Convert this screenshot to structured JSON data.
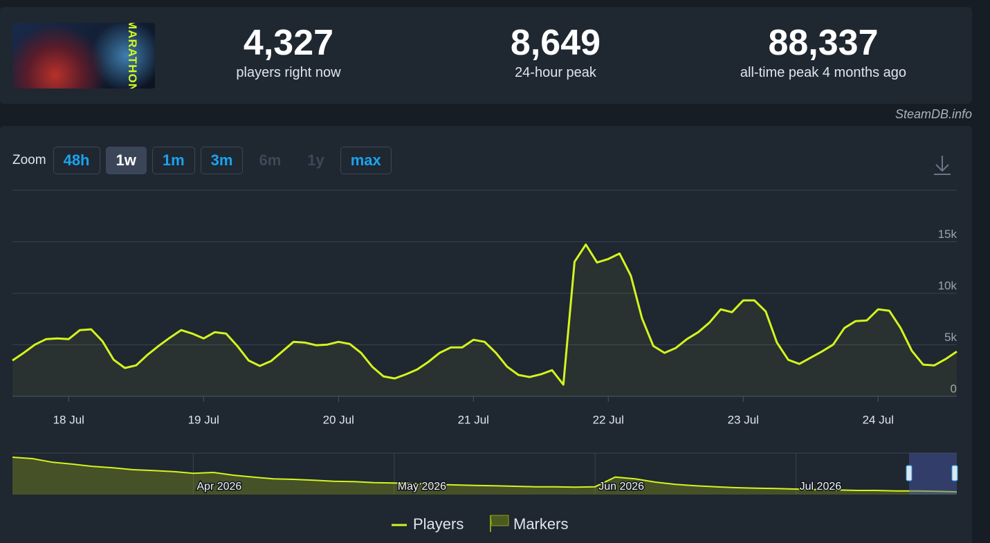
{
  "header": {
    "game_logo_text": "MARATHON",
    "stats": [
      {
        "value": "4,327",
        "label": "players right now"
      },
      {
        "value": "8,649",
        "label": "24-hour peak"
      },
      {
        "value": "88,337",
        "label": "all-time peak 4 months ago"
      }
    ]
  },
  "watermark": "SteamDB.info",
  "zoom": {
    "label": "Zoom",
    "options": [
      {
        "label": "48h",
        "state": "enabled"
      },
      {
        "label": "1w",
        "state": "active"
      },
      {
        "label": "1m",
        "state": "enabled"
      },
      {
        "label": "3m",
        "state": "enabled"
      },
      {
        "label": "6m",
        "state": "disabled"
      },
      {
        "label": "1y",
        "state": "disabled"
      },
      {
        "label": "max",
        "state": "enabled"
      }
    ]
  },
  "chart_data": {
    "type": "line",
    "categories": [
      null,
      null,
      null,
      null,
      null,
      "18 Jul",
      null,
      null,
      null,
      null,
      null,
      null,
      null,
      null,
      null,
      null,
      null,
      "19 Jul",
      null,
      null,
      null,
      null,
      null,
      null,
      null,
      null,
      null,
      null,
      null,
      "20 Jul",
      null,
      null,
      null,
      null,
      null,
      null,
      null,
      null,
      null,
      null,
      null,
      "21 Jul",
      null,
      null,
      null,
      null,
      null,
      null,
      null,
      null,
      null,
      null,
      null,
      "22 Jul",
      null,
      null,
      null,
      null,
      null,
      null,
      null,
      null,
      null,
      null,
      null,
      "23 Jul",
      null,
      null,
      null,
      null,
      null,
      null,
      null,
      null,
      null,
      null,
      null,
      "24 Jul",
      null,
      null,
      null,
      null,
      null,
      null,
      null
    ],
    "series": [
      {
        "name": "Players",
        "color": "#d4f51e",
        "values": [
          3480,
          4220,
          5020,
          5560,
          5620,
          5560,
          6430,
          6500,
          5360,
          3550,
          2750,
          3010,
          4020,
          4890,
          5690,
          6430,
          6090,
          5620,
          6230,
          6090,
          4890,
          3480,
          2950,
          3420,
          4350,
          5290,
          5220,
          4960,
          5020,
          5290,
          5090,
          4220,
          2880,
          1940,
          1740,
          2140,
          2610,
          3350,
          4220,
          4750,
          4750,
          5490,
          5290,
          4220,
          2880,
          2080,
          1870,
          2140,
          2540,
          1140,
          13060,
          14730,
          12990,
          13330,
          13860,
          11720,
          7570,
          4890,
          4220,
          4690,
          5560,
          6230,
          7160,
          8440,
          8170,
          9310,
          9310,
          8240,
          5220,
          3550,
          3150,
          3750,
          4350,
          5020,
          6630,
          7300,
          7370,
          8440,
          8300,
          6630,
          4420,
          3080,
          3010,
          3620,
          4350
        ]
      }
    ],
    "ylim": [
      0,
      20000
    ],
    "yticks": [
      0,
      {
        "value": 5000,
        "label": "5k"
      },
      {
        "value": 10000,
        "label": "10k"
      },
      {
        "value": 15000,
        "label": "15k"
      }
    ],
    "grid": true,
    "markers_legend": "Markers",
    "navigator": {
      "categories": [
        null,
        null,
        null,
        null,
        null,
        null,
        null,
        null,
        null,
        "Apr 2026",
        null,
        null,
        null,
        null,
        null,
        null,
        null,
        null,
        null,
        "May 2026",
        null,
        null,
        null,
        null,
        null,
        null,
        null,
        null,
        null,
        "Jun 2026",
        null,
        null,
        null,
        null,
        null,
        null,
        null,
        null,
        null,
        "Jul 2026",
        null,
        null,
        null,
        null,
        null,
        null,
        null,
        null
      ],
      "values": [
        81000,
        78000,
        70000,
        66000,
        61000,
        58000,
        54000,
        52000,
        50000,
        46000,
        48000,
        42000,
        38000,
        34000,
        33000,
        31000,
        29000,
        28000,
        26000,
        25000,
        24000,
        22000,
        21000,
        20000,
        19000,
        18000,
        17000,
        17000,
        16000,
        17000,
        38000,
        34000,
        27000,
        22000,
        19000,
        17000,
        15000,
        14000,
        13000,
        12000,
        11000,
        10000,
        9000,
        9000,
        8000,
        8000,
        7000,
        6000
      ],
      "ylim": [
        0,
        90000
      ]
    }
  }
}
